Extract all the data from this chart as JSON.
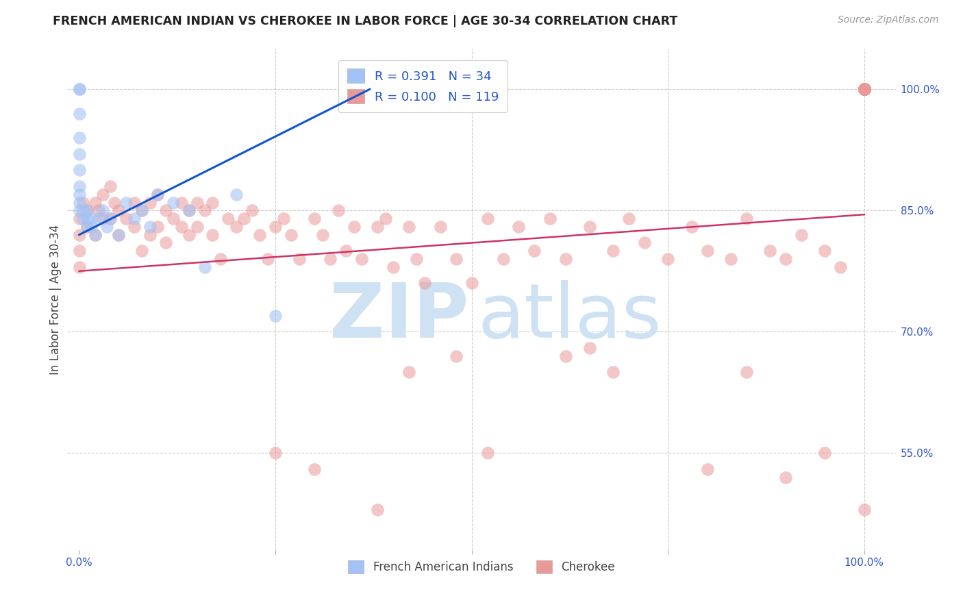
{
  "title": "FRENCH AMERICAN INDIAN VS CHEROKEE IN LABOR FORCE | AGE 30-34 CORRELATION CHART",
  "source": "Source: ZipAtlas.com",
  "ylabel": "In Labor Force | Age 30-34",
  "blue_color": "#a4c2f4",
  "pink_color": "#ea9999",
  "blue_line_color": "#1155cc",
  "pink_line_color": "#cc3366",
  "watermark_zip_color": "#c9daf8",
  "watermark_atlas_color": "#a4c2f4",
  "ytick_positions": [
    0.55,
    0.7,
    0.85,
    1.0
  ],
  "ytick_labels": [
    "55.0%",
    "70.0%",
    "85.0%",
    "100.0%"
  ],
  "grid_color": "#cccccc",
  "french_x": [
    0.0,
    0.0,
    0.0,
    0.0,
    0.0,
    0.0,
    0.0,
    0.0,
    0.0,
    0.0,
    0.005,
    0.005,
    0.01,
    0.01,
    0.01,
    0.015,
    0.015,
    0.02,
    0.025,
    0.03,
    0.035,
    0.04,
    0.05,
    0.06,
    0.07,
    0.08,
    0.09,
    0.1,
    0.12,
    0.14,
    0.16,
    0.2,
    0.25,
    0.37
  ],
  "french_y": [
    1.0,
    1.0,
    0.97,
    0.94,
    0.92,
    0.9,
    0.88,
    0.87,
    0.86,
    0.85,
    0.85,
    0.84,
    0.85,
    0.84,
    0.83,
    0.84,
    0.83,
    0.82,
    0.84,
    0.85,
    0.83,
    0.84,
    0.82,
    0.86,
    0.84,
    0.85,
    0.83,
    0.87,
    0.86,
    0.85,
    0.78,
    0.87,
    0.72,
    1.0
  ],
  "cherokee_x": [
    0.0,
    0.0,
    0.0,
    0.0,
    0.005,
    0.01,
    0.01,
    0.02,
    0.02,
    0.025,
    0.03,
    0.03,
    0.04,
    0.04,
    0.045,
    0.05,
    0.05,
    0.06,
    0.07,
    0.07,
    0.08,
    0.08,
    0.09,
    0.09,
    0.1,
    0.1,
    0.11,
    0.11,
    0.12,
    0.13,
    0.13,
    0.14,
    0.14,
    0.15,
    0.15,
    0.16,
    0.17,
    0.17,
    0.18,
    0.19,
    0.2,
    0.21,
    0.22,
    0.23,
    0.24,
    0.25,
    0.26,
    0.27,
    0.28,
    0.3,
    0.31,
    0.32,
    0.33,
    0.34,
    0.35,
    0.36,
    0.38,
    0.39,
    0.4,
    0.42,
    0.43,
    0.44,
    0.46,
    0.48,
    0.5,
    0.52,
    0.54,
    0.56,
    0.58,
    0.6,
    0.62,
    0.65,
    0.68,
    0.7,
    0.72,
    0.75,
    0.78,
    0.8,
    0.83,
    0.85,
    0.88,
    0.9,
    0.92,
    0.95,
    0.97,
    1.0,
    1.0,
    1.0,
    1.0,
    1.0,
    1.0,
    1.0,
    1.0,
    1.0,
    1.0,
    1.0,
    1.0,
    1.0,
    1.0,
    1.0,
    1.0,
    1.0,
    1.0,
    1.0,
    1.0,
    1.0,
    1.0,
    1.0,
    1.0,
    1.0,
    1.0,
    1.0,
    1.0,
    1.0,
    1.0
  ],
  "cherokee_y": [
    0.84,
    0.82,
    0.8,
    0.78,
    0.86,
    0.85,
    0.83,
    0.86,
    0.82,
    0.85,
    0.87,
    0.84,
    0.88,
    0.84,
    0.86,
    0.85,
    0.82,
    0.84,
    0.86,
    0.83,
    0.85,
    0.8,
    0.86,
    0.82,
    0.87,
    0.83,
    0.85,
    0.81,
    0.84,
    0.86,
    0.83,
    0.85,
    0.82,
    0.86,
    0.83,
    0.85,
    0.86,
    0.82,
    0.79,
    0.84,
    0.83,
    0.84,
    0.85,
    0.82,
    0.79,
    0.83,
    0.84,
    0.82,
    0.79,
    0.84,
    0.82,
    0.79,
    0.85,
    0.8,
    0.83,
    0.79,
    0.83,
    0.84,
    0.78,
    0.83,
    0.79,
    0.76,
    0.83,
    0.79,
    0.76,
    0.84,
    0.79,
    0.83,
    0.8,
    0.84,
    0.79,
    0.83,
    0.8,
    0.84,
    0.81,
    0.79,
    0.83,
    0.8,
    0.79,
    0.84,
    0.8,
    0.79,
    0.82,
    0.8,
    0.78,
    1.0,
    1.0,
    1.0,
    1.0,
    1.0,
    1.0,
    1.0,
    1.0,
    1.0,
    1.0,
    1.0,
    1.0,
    1.0,
    1.0,
    1.0,
    1.0,
    1.0,
    1.0,
    1.0,
    1.0,
    1.0,
    1.0,
    1.0,
    1.0,
    1.0,
    1.0,
    1.0,
    1.0,
    1.0,
    1.0
  ],
  "cherokee_outlier_x": [
    0.25,
    0.3,
    0.38,
    0.42,
    0.48,
    0.52,
    0.62,
    0.65,
    0.68,
    0.8,
    0.85,
    0.9,
    0.95,
    1.0
  ],
  "cherokee_outlier_y": [
    0.55,
    0.53,
    0.48,
    0.65,
    0.67,
    0.55,
    0.67,
    0.68,
    0.65,
    0.53,
    0.65,
    0.52,
    0.55,
    0.48
  ],
  "blue_trend_x": [
    0.0,
    0.37
  ],
  "blue_trend_y_start": 0.82,
  "blue_trend_y_end": 1.0,
  "pink_trend_x": [
    0.0,
    1.0
  ],
  "pink_trend_y_start": 0.775,
  "pink_trend_y_end": 0.845,
  "xlim": [
    -0.015,
    1.04
  ],
  "ylim": [
    0.43,
    1.05
  ],
  "marker_size": 180
}
